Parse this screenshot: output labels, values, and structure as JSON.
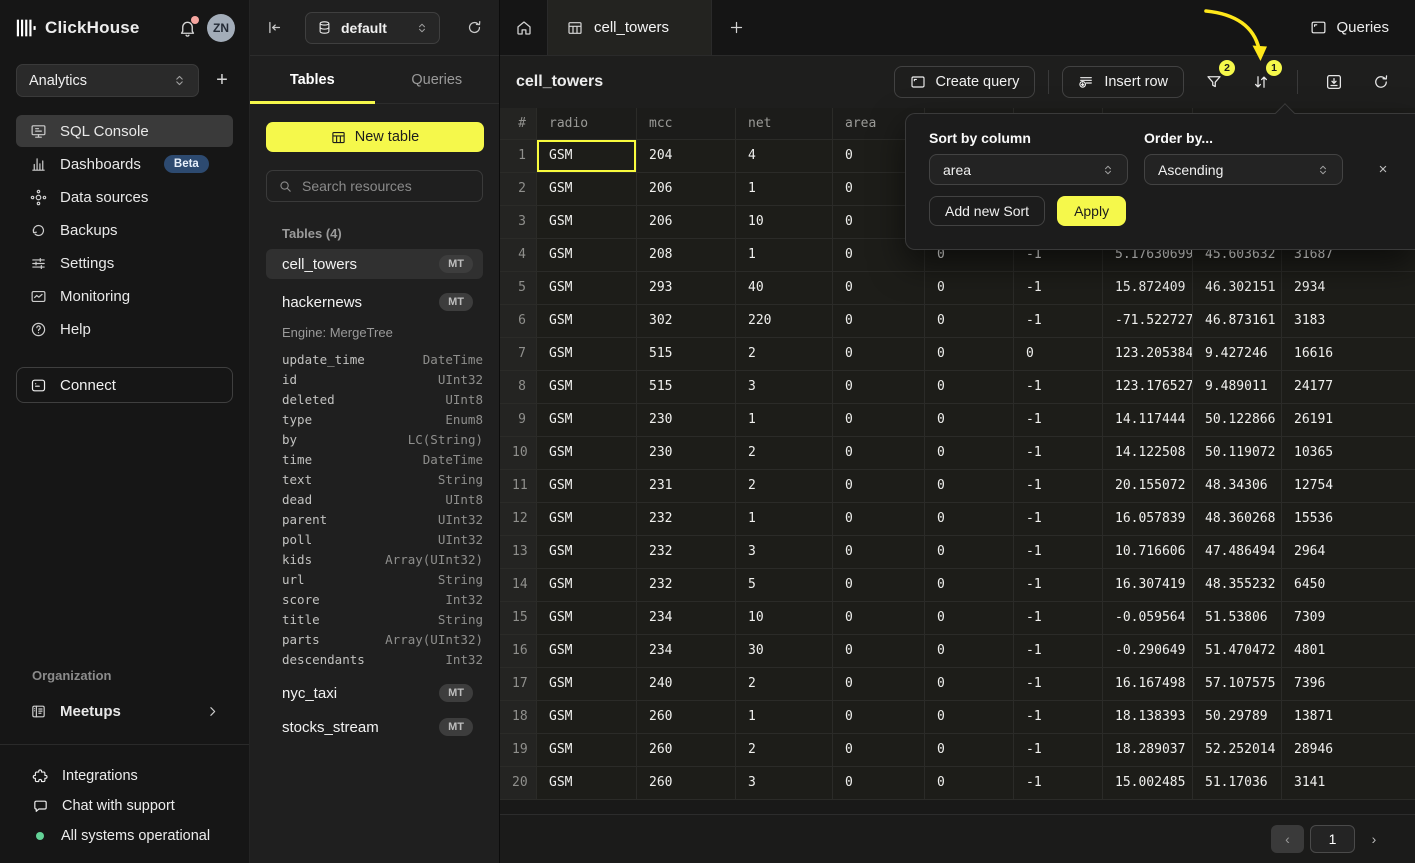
{
  "colors": {
    "accent": "#f5f84b",
    "arrow": "#ffe81a",
    "status_green": "#63d297",
    "selection_outline": "#f8fb3d"
  },
  "topbar": {
    "brand": "ClickHouse",
    "avatar": "ZN"
  },
  "workspace": {
    "name": "Analytics"
  },
  "sidebar": {
    "nav": [
      {
        "label": "SQL Console"
      },
      {
        "label": "Dashboards",
        "badge": "Beta"
      },
      {
        "label": "Data sources"
      },
      {
        "label": "Backups"
      },
      {
        "label": "Settings"
      },
      {
        "label": "Monitoring"
      },
      {
        "label": "Help"
      }
    ],
    "connect": "Connect",
    "org_label": "Organization",
    "meetups": "Meetups",
    "footer": [
      {
        "label": "Integrations"
      },
      {
        "label": "Chat with support"
      },
      {
        "label": "All systems operational"
      }
    ]
  },
  "explorer": {
    "database": "default",
    "tabs": {
      "tables": "Tables",
      "queries": "Queries"
    },
    "new_table": "New table",
    "search_placeholder": "Search resources",
    "section": "Tables (4)",
    "tables": [
      {
        "name": "cell_towers",
        "badge": "MT"
      },
      {
        "name": "hackernews",
        "badge": "MT",
        "engine": "Engine: MergeTree"
      },
      {
        "name": "nyc_taxi",
        "badge": "MT"
      },
      {
        "name": "stocks_stream",
        "badge": "MT"
      }
    ],
    "hackernews_columns": [
      [
        "update_time",
        "DateTime"
      ],
      [
        "id",
        "UInt32"
      ],
      [
        "deleted",
        "UInt8"
      ],
      [
        "type",
        "Enum8"
      ],
      [
        "by",
        "LC(String)"
      ],
      [
        "time",
        "DateTime"
      ],
      [
        "text",
        "String"
      ],
      [
        "dead",
        "UInt8"
      ],
      [
        "parent",
        "UInt32"
      ],
      [
        "poll",
        "UInt32"
      ],
      [
        "kids",
        "Array(UInt32)"
      ],
      [
        "url",
        "String"
      ],
      [
        "score",
        "Int32"
      ],
      [
        "title",
        "String"
      ],
      [
        "parts",
        "Array(UInt32)"
      ],
      [
        "descendants",
        "Int32"
      ]
    ]
  },
  "main": {
    "active_tab": "cell_towers",
    "queries_button": "Queries",
    "title": "cell_towers",
    "create_query": "Create query",
    "insert_row": "Insert row",
    "filter_badge": "2",
    "sort_badge": "1",
    "grid": {
      "headers": [
        "#",
        "radio",
        "mcc",
        "net",
        "area",
        "",
        "",
        "",
        "",
        ""
      ],
      "rows": [
        [
          "1",
          "GSM",
          "204",
          "4",
          "0",
          "",
          "",
          "",
          "",
          ""
        ],
        [
          "2",
          "GSM",
          "206",
          "1",
          "0",
          "",
          "",
          "",
          "",
          ""
        ],
        [
          "3",
          "GSM",
          "206",
          "10",
          "0",
          "",
          "",
          "",
          "",
          ""
        ],
        [
          "4",
          "GSM",
          "208",
          "1",
          "0",
          "0",
          "-1",
          "5.17630699…",
          "45.603632",
          "31687"
        ],
        [
          "5",
          "GSM",
          "293",
          "40",
          "0",
          "0",
          "-1",
          "15.872409",
          "46.302151",
          "2934"
        ],
        [
          "6",
          "GSM",
          "302",
          "220",
          "0",
          "0",
          "-1",
          "-71.522727",
          "46.873161",
          "3183"
        ],
        [
          "7",
          "GSM",
          "515",
          "2",
          "0",
          "0",
          "0",
          "123.205384",
          "9.427246",
          "16616"
        ],
        [
          "8",
          "GSM",
          "515",
          "3",
          "0",
          "0",
          "-1",
          "123.176527",
          "9.489011",
          "24177"
        ],
        [
          "9",
          "GSM",
          "230",
          "1",
          "0",
          "0",
          "-1",
          "14.117444",
          "50.122866",
          "26191"
        ],
        [
          "10",
          "GSM",
          "230",
          "2",
          "0",
          "0",
          "-1",
          "14.122508",
          "50.119072",
          "10365"
        ],
        [
          "11",
          "GSM",
          "231",
          "2",
          "0",
          "0",
          "-1",
          "20.155072",
          "48.34306",
          "12754"
        ],
        [
          "12",
          "GSM",
          "232",
          "1",
          "0",
          "0",
          "-1",
          "16.057839",
          "48.360268",
          "15536"
        ],
        [
          "13",
          "GSM",
          "232",
          "3",
          "0",
          "0",
          "-1",
          "10.716606",
          "47.486494",
          "2964"
        ],
        [
          "14",
          "GSM",
          "232",
          "5",
          "0",
          "0",
          "-1",
          "16.307419",
          "48.355232",
          "6450"
        ],
        [
          "15",
          "GSM",
          "234",
          "10",
          "0",
          "0",
          "-1",
          "-0.059564",
          "51.53806",
          "7309"
        ],
        [
          "16",
          "GSM",
          "234",
          "30",
          "0",
          "0",
          "-1",
          "-0.290649",
          "51.470472",
          "4801"
        ],
        [
          "17",
          "GSM",
          "240",
          "2",
          "0",
          "0",
          "-1",
          "16.167498",
          "57.107575",
          "7396"
        ],
        [
          "18",
          "GSM",
          "260",
          "1",
          "0",
          "0",
          "-1",
          "18.138393",
          "50.29789",
          "13871"
        ],
        [
          "19",
          "GSM",
          "260",
          "2",
          "0",
          "0",
          "-1",
          "18.289037",
          "52.252014",
          "28946"
        ],
        [
          "20",
          "GSM",
          "260",
          "3",
          "0",
          "0",
          "-1",
          "15.002485",
          "51.17036",
          "3141"
        ]
      ]
    },
    "sort_popup": {
      "column_label": "Sort by column",
      "column_value": "area",
      "order_label": "Order by...",
      "order_value": "Ascending",
      "add_sort": "Add new Sort",
      "apply": "Apply",
      "close": "×"
    },
    "pagination": {
      "prev": "‹",
      "page": "1",
      "next": "›"
    }
  }
}
